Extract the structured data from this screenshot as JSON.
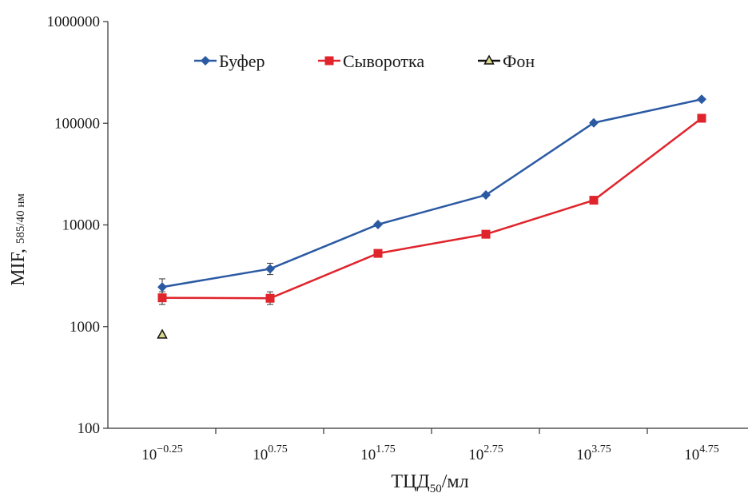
{
  "chart_data": {
    "type": "line",
    "title": "",
    "xlabel": {
      "main": "ТЦД",
      "sub": "50",
      "suffix": "/мл"
    },
    "ylabel": {
      "main": "MIF, ",
      "sub": "585/40 нм"
    },
    "y_scale": "log",
    "ylim": [
      100,
      1000000
    ],
    "y_ticks": [
      {
        "value": 100,
        "label": "100"
      },
      {
        "value": 1000,
        "label": "1000"
      },
      {
        "value": 10000,
        "label": "10000"
      },
      {
        "value": 100000,
        "label": "100000"
      },
      {
        "value": 1000000,
        "label": "1000000"
      }
    ],
    "categories": [
      {
        "base": "10",
        "exp": "−0.25"
      },
      {
        "base": "10",
        "exp": "0.75"
      },
      {
        "base": "10",
        "exp": "1.75"
      },
      {
        "base": "10",
        "exp": "2.75"
      },
      {
        "base": "10",
        "exp": "3.75"
      },
      {
        "base": "10",
        "exp": "4.75"
      }
    ],
    "grid": false,
    "legend_position": "top",
    "series": [
      {
        "name": "Буфер",
        "color": "#2b5aa3",
        "marker": "diamond",
        "values": [
          2450,
          3700,
          10100,
          19700,
          101000,
          172000
        ],
        "error": [
          [
            2050,
            2950
          ],
          [
            3250,
            4200
          ],
          null,
          null,
          null,
          null
        ]
      },
      {
        "name": "Сыворотка",
        "color": "#e0242c",
        "marker": "square",
        "values": [
          1920,
          1900,
          5250,
          8100,
          17500,
          112000
        ],
        "error": [
          [
            1650,
            2200
          ],
          [
            1650,
            2200
          ],
          null,
          null,
          null,
          null
        ]
      },
      {
        "name": "Фон",
        "color": "#111111",
        "marker_fill": "#d9d98a",
        "marker": "triangle",
        "values": [
          830,
          null,
          null,
          null,
          null,
          null
        ],
        "error": [
          null,
          null,
          null,
          null,
          null,
          null
        ]
      }
    ]
  }
}
